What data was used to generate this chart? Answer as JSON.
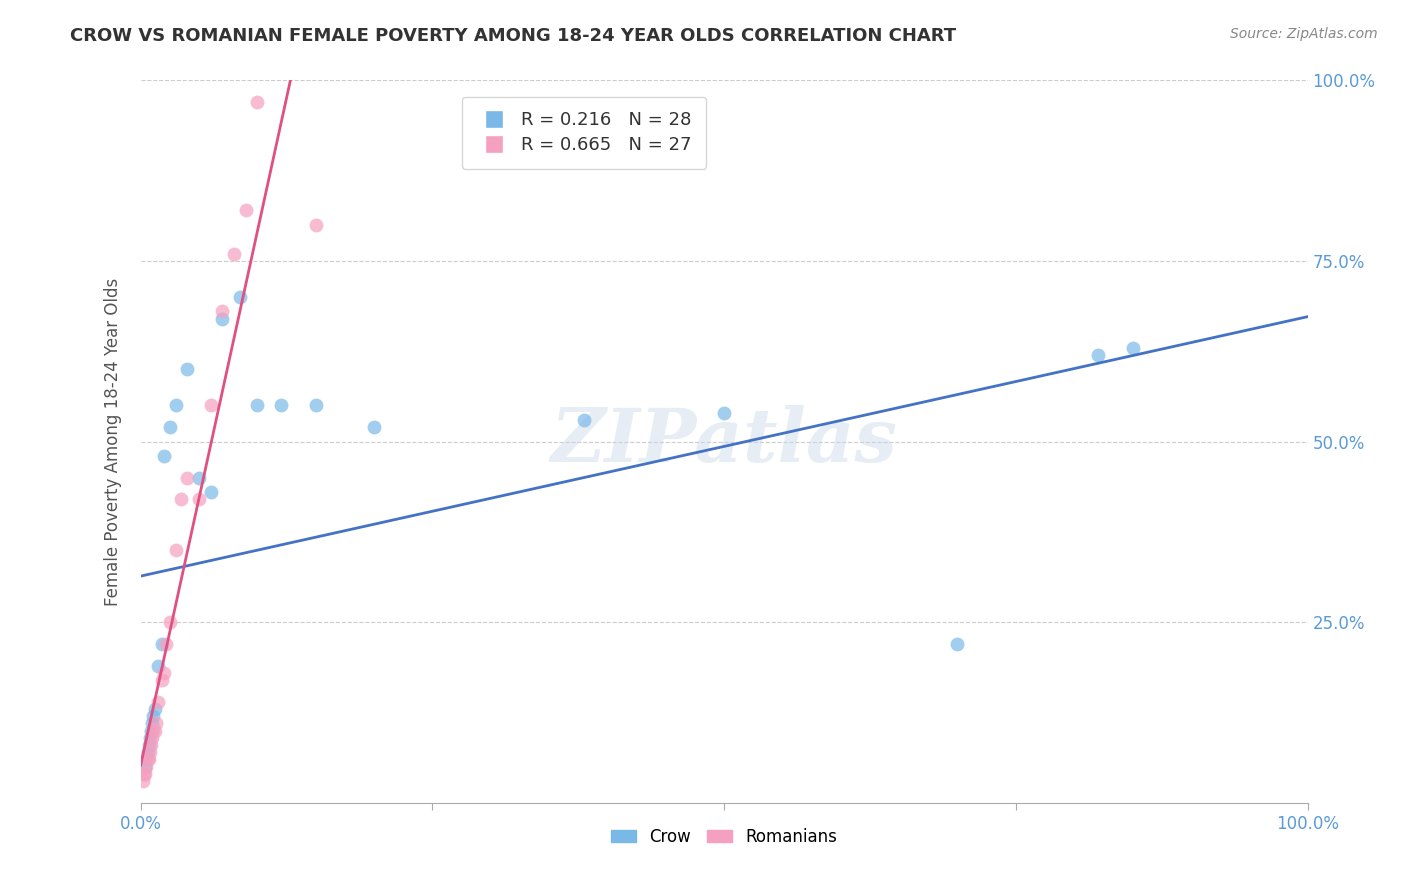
{
  "title": "CROW VS ROMANIAN FEMALE POVERTY AMONG 18-24 YEAR OLDS CORRELATION CHART",
  "source": "Source: ZipAtlas.com",
  "ylabel": "Female Poverty Among 18-24 Year Olds",
  "crow_R": 0.216,
  "crow_N": 28,
  "romanian_R": 0.665,
  "romanian_N": 27,
  "crow_color": "#7ab8e8",
  "romanian_color": "#f4a0be",
  "crow_line_color": "#4472c4",
  "romanian_line_color": "#e05080",
  "background_color": "#ffffff",
  "grid_color": "#cccccc",
  "watermark": "ZIPatlas",
  "xlim": [
    0,
    1
  ],
  "ylim": [
    0,
    1
  ],
  "xtick_vals": [
    0,
    0.25,
    0.5,
    0.75,
    1.0
  ],
  "xtick_labels_bottom": [
    "0.0%",
    "",
    "",
    "",
    "100.0%"
  ],
  "ytick_vals": [
    0.25,
    0.5,
    0.75,
    1.0
  ],
  "ytick_labels_right": [
    "25.0%",
    "50.0%",
    "75.0%",
    "100.0%"
  ],
  "crow_x": [
    0.004,
    0.005,
    0.006,
    0.007,
    0.008,
    0.009,
    0.01,
    0.011,
    0.012,
    0.015,
    0.018,
    0.02,
    0.025,
    0.03,
    0.04,
    0.05,
    0.06,
    0.07,
    0.085,
    0.1,
    0.12,
    0.15,
    0.2,
    0.38,
    0.5,
    0.7,
    0.82,
    0.85
  ],
  "crow_y": [
    0.05,
    0.06,
    0.07,
    0.08,
    0.09,
    0.1,
    0.11,
    0.12,
    0.13,
    0.19,
    0.22,
    0.48,
    0.52,
    0.55,
    0.6,
    0.45,
    0.43,
    0.67,
    0.7,
    0.55,
    0.55,
    0.55,
    0.52,
    0.53,
    0.54,
    0.22,
    0.62,
    0.63
  ],
  "romanian_x": [
    0.002,
    0.003,
    0.004,
    0.005,
    0.006,
    0.007,
    0.008,
    0.009,
    0.01,
    0.011,
    0.012,
    0.013,
    0.015,
    0.018,
    0.02,
    0.022,
    0.025,
    0.03,
    0.035,
    0.04,
    0.05,
    0.06,
    0.07,
    0.08,
    0.09,
    0.1,
    0.15
  ],
  "romanian_y": [
    0.03,
    0.04,
    0.04,
    0.05,
    0.06,
    0.06,
    0.07,
    0.08,
    0.09,
    0.1,
    0.1,
    0.11,
    0.14,
    0.17,
    0.18,
    0.22,
    0.25,
    0.35,
    0.42,
    0.45,
    0.42,
    0.55,
    0.68,
    0.76,
    0.82,
    0.97,
    0.8
  ]
}
